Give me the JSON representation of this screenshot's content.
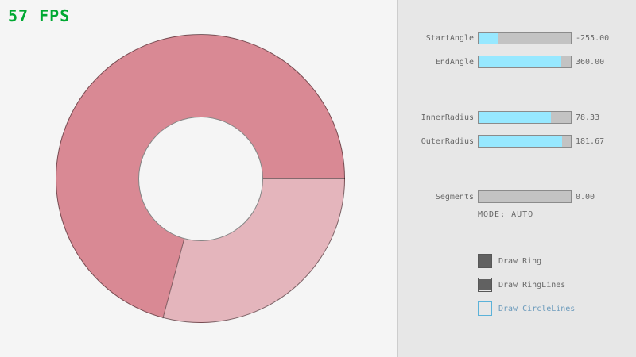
{
  "fps": "57 FPS",
  "colors": {
    "fps_green": "#00a832",
    "ring_dark": "#d98994",
    "ring_light": "#e4b5bc",
    "accent_fill": "#97e8ff",
    "accent_border": "#5bb2d9",
    "blue_label": "#6c9bbc"
  },
  "ring": {
    "start_angle": -255.0,
    "end_angle": 360.0,
    "inner_radius": 78.33,
    "outer_radius": 181.67,
    "segments": 0
  },
  "sliders": [
    {
      "label": "StartAngle",
      "value": "-255.00",
      "fill_pct": 21.7
    },
    {
      "label": "EndAngle",
      "value": "360.00",
      "fill_pct": 90
    },
    {
      "label": "InnerRadius",
      "value": "78.33",
      "fill_pct": 78.3
    },
    {
      "label": "OuterRadius",
      "value": "181.67",
      "fill_pct": 90.8
    },
    {
      "label": "Segments",
      "value": "0.00",
      "fill_pct": 0
    }
  ],
  "mode_text": "MODE: AUTO",
  "checkboxes": [
    {
      "label": "Draw Ring",
      "checked": true
    },
    {
      "label": "Draw RingLines",
      "checked": true
    },
    {
      "label": "Draw CircleLines",
      "checked": false
    }
  ]
}
